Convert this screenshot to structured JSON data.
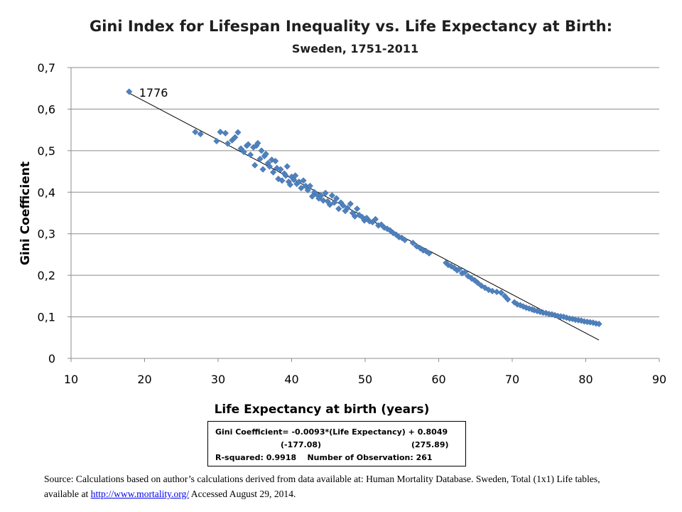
{
  "chart_data": {
    "type": "scatter",
    "title": "Gini Index for Lifespan Inequality vs. Life Expectancy at Birth:",
    "subtitle": "Sweden, 1751-2011",
    "xlabel": "Life Expectancy at birth (years)",
    "ylabel": "Gini Coefficient",
    "xlim": [
      10,
      90
    ],
    "ylim": [
      0,
      0.7
    ],
    "x_ticks": [
      "10",
      "20",
      "30",
      "40",
      "50",
      "60",
      "70",
      "80",
      "90"
    ],
    "y_ticks": [
      "0",
      "0,1",
      "0,2",
      "0,3",
      "0,4",
      "0,5",
      "0,6",
      "0,7"
    ],
    "grid": "horizontal",
    "marker_color": "#4f81bd",
    "trendline": {
      "slope": -0.0093,
      "intercept": 0.8049,
      "x_range": [
        17.9,
        81.8
      ]
    },
    "annotation": {
      "label": "1776",
      "x": 17.9,
      "y": 0.642
    },
    "series": [
      {
        "points": [
          [
            17.9,
            0.642
          ],
          [
            26.9,
            0.545
          ],
          [
            27.6,
            0.54
          ],
          [
            29.8,
            0.523
          ],
          [
            30.3,
            0.545
          ],
          [
            31.0,
            0.542
          ],
          [
            31.3,
            0.517
          ],
          [
            31.9,
            0.525
          ],
          [
            32.3,
            0.532
          ],
          [
            32.7,
            0.544
          ],
          [
            33.1,
            0.505
          ],
          [
            33.5,
            0.497
          ],
          [
            33.9,
            0.512
          ],
          [
            34.1,
            0.515
          ],
          [
            34.4,
            0.49
          ],
          [
            34.8,
            0.508
          ],
          [
            35.0,
            0.465
          ],
          [
            35.2,
            0.512
          ],
          [
            35.4,
            0.518
          ],
          [
            35.7,
            0.48
          ],
          [
            35.9,
            0.5
          ],
          [
            36.1,
            0.455
          ],
          [
            36.3,
            0.487
          ],
          [
            36.5,
            0.492
          ],
          [
            36.8,
            0.47
          ],
          [
            37.0,
            0.462
          ],
          [
            37.3,
            0.478
          ],
          [
            37.5,
            0.448
          ],
          [
            37.8,
            0.475
          ],
          [
            38.0,
            0.458
          ],
          [
            38.2,
            0.432
          ],
          [
            38.5,
            0.455
          ],
          [
            38.7,
            0.428
          ],
          [
            39.0,
            0.445
          ],
          [
            39.2,
            0.44
          ],
          [
            39.4,
            0.462
          ],
          [
            39.6,
            0.425
          ],
          [
            39.8,
            0.418
          ],
          [
            40.0,
            0.437
          ],
          [
            40.3,
            0.43
          ],
          [
            40.5,
            0.44
          ],
          [
            40.7,
            0.42
          ],
          [
            41.0,
            0.425
          ],
          [
            41.3,
            0.41
          ],
          [
            41.6,
            0.428
          ],
          [
            41.9,
            0.415
          ],
          [
            42.2,
            0.405
          ],
          [
            42.5,
            0.415
          ],
          [
            42.8,
            0.39
          ],
          [
            43.1,
            0.4
          ],
          [
            43.4,
            0.395
          ],
          [
            43.7,
            0.385
          ],
          [
            44.0,
            0.392
          ],
          [
            44.3,
            0.38
          ],
          [
            44.6,
            0.398
          ],
          [
            44.9,
            0.378
          ],
          [
            45.2,
            0.37
          ],
          [
            45.5,
            0.392
          ],
          [
            45.8,
            0.375
          ],
          [
            46.1,
            0.385
          ],
          [
            46.4,
            0.36
          ],
          [
            46.7,
            0.375
          ],
          [
            47.0,
            0.368
          ],
          [
            47.3,
            0.355
          ],
          [
            47.6,
            0.362
          ],
          [
            48.0,
            0.372
          ],
          [
            48.3,
            0.35
          ],
          [
            48.6,
            0.342
          ],
          [
            48.9,
            0.36
          ],
          [
            49.2,
            0.345
          ],
          [
            49.6,
            0.34
          ],
          [
            49.9,
            0.332
          ],
          [
            50.2,
            0.338
          ],
          [
            50.6,
            0.33
          ],
          [
            51.0,
            0.328
          ],
          [
            51.4,
            0.335
          ],
          [
            51.8,
            0.32
          ],
          [
            52.2,
            0.322
          ],
          [
            52.6,
            0.315
          ],
          [
            53.0,
            0.312
          ],
          [
            53.4,
            0.308
          ],
          [
            53.8,
            0.302
          ],
          [
            54.2,
            0.298
          ],
          [
            54.6,
            0.292
          ],
          [
            55.0,
            0.29
          ],
          [
            55.4,
            0.285
          ],
          [
            56.5,
            0.278
          ],
          [
            57.0,
            0.27
          ],
          [
            57.5,
            0.265
          ],
          [
            57.9,
            0.26
          ],
          [
            58.3,
            0.258
          ],
          [
            58.7,
            0.253
          ],
          [
            61.0,
            0.23
          ],
          [
            61.3,
            0.225
          ],
          [
            61.7,
            0.222
          ],
          [
            62.1,
            0.218
          ],
          [
            62.5,
            0.212
          ],
          [
            62.8,
            0.215
          ],
          [
            63.2,
            0.205
          ],
          [
            63.6,
            0.208
          ],
          [
            64.0,
            0.198
          ],
          [
            64.5,
            0.192
          ],
          [
            64.9,
            0.188
          ],
          [
            65.3,
            0.182
          ],
          [
            65.8,
            0.175
          ],
          [
            66.3,
            0.17
          ],
          [
            66.8,
            0.165
          ],
          [
            67.3,
            0.162
          ],
          [
            67.9,
            0.16
          ],
          [
            68.5,
            0.158
          ],
          [
            69.0,
            0.15
          ],
          [
            69.4,
            0.142
          ],
          [
            70.3,
            0.135
          ],
          [
            70.7,
            0.13
          ],
          [
            71.1,
            0.128
          ],
          [
            71.5,
            0.125
          ],
          [
            71.9,
            0.122
          ],
          [
            72.3,
            0.12
          ],
          [
            72.7,
            0.118
          ],
          [
            73.0,
            0.116
          ],
          [
            73.4,
            0.114
          ],
          [
            73.8,
            0.112
          ],
          [
            74.2,
            0.11
          ],
          [
            74.6,
            0.109
          ],
          [
            75.0,
            0.107
          ],
          [
            75.4,
            0.106
          ],
          [
            75.8,
            0.104
          ],
          [
            76.2,
            0.102
          ],
          [
            76.6,
            0.101
          ],
          [
            77.0,
            0.1
          ],
          [
            77.4,
            0.098
          ],
          [
            77.8,
            0.096
          ],
          [
            78.2,
            0.095
          ],
          [
            78.6,
            0.093
          ],
          [
            79.0,
            0.092
          ],
          [
            79.4,
            0.091
          ],
          [
            79.8,
            0.089
          ],
          [
            80.2,
            0.088
          ],
          [
            80.6,
            0.087
          ],
          [
            81.0,
            0.086
          ],
          [
            81.4,
            0.084
          ],
          [
            81.8,
            0.083
          ]
        ]
      }
    ]
  },
  "equation_box": {
    "line1": "Gini Coefficient= -0.0093*(Life Expectancy) + 0.8049",
    "se_slope": "(-177.08)",
    "se_intercept": "(275.89)",
    "line3": "R-squared: 0.9918    Number of Observation: 261"
  },
  "source": {
    "text": "Source:  Calculations based on author’s calculations derived from data available at: Human Mortality Database. Sweden, Total (1x1) Life tables, available at  ",
    "link_text": "http://www.mortality.org/",
    "after_link": " Accessed August 29, 2014."
  }
}
